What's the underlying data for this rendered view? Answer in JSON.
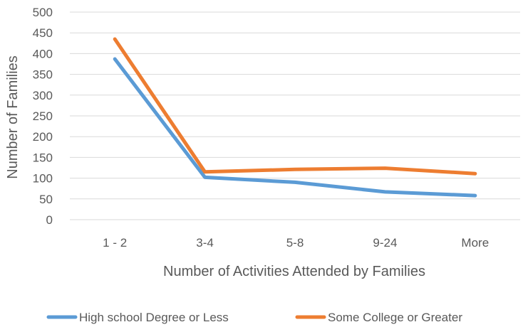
{
  "chart_data": {
    "type": "line",
    "categories": [
      "1 - 2",
      "3-4",
      "5-8",
      "9-24",
      "More"
    ],
    "series": [
      {
        "name": "High school Degree or Less",
        "values": [
          387,
          102,
          90,
          67,
          58
        ],
        "color": "#5b9bd5"
      },
      {
        "name": "Some College or Greater",
        "values": [
          435,
          115,
          121,
          124,
          111
        ],
        "color": "#ed7d31"
      }
    ],
    "xlabel": "Number of Activities Attended by Families",
    "ylabel": "Number of Families",
    "ylim": [
      0,
      500
    ],
    "yticks": [
      "0",
      "50",
      "100",
      "150",
      "200",
      "250",
      "300",
      "350",
      "400",
      "450",
      "500"
    ],
    "grid": true,
    "legend_position": "bottom"
  }
}
